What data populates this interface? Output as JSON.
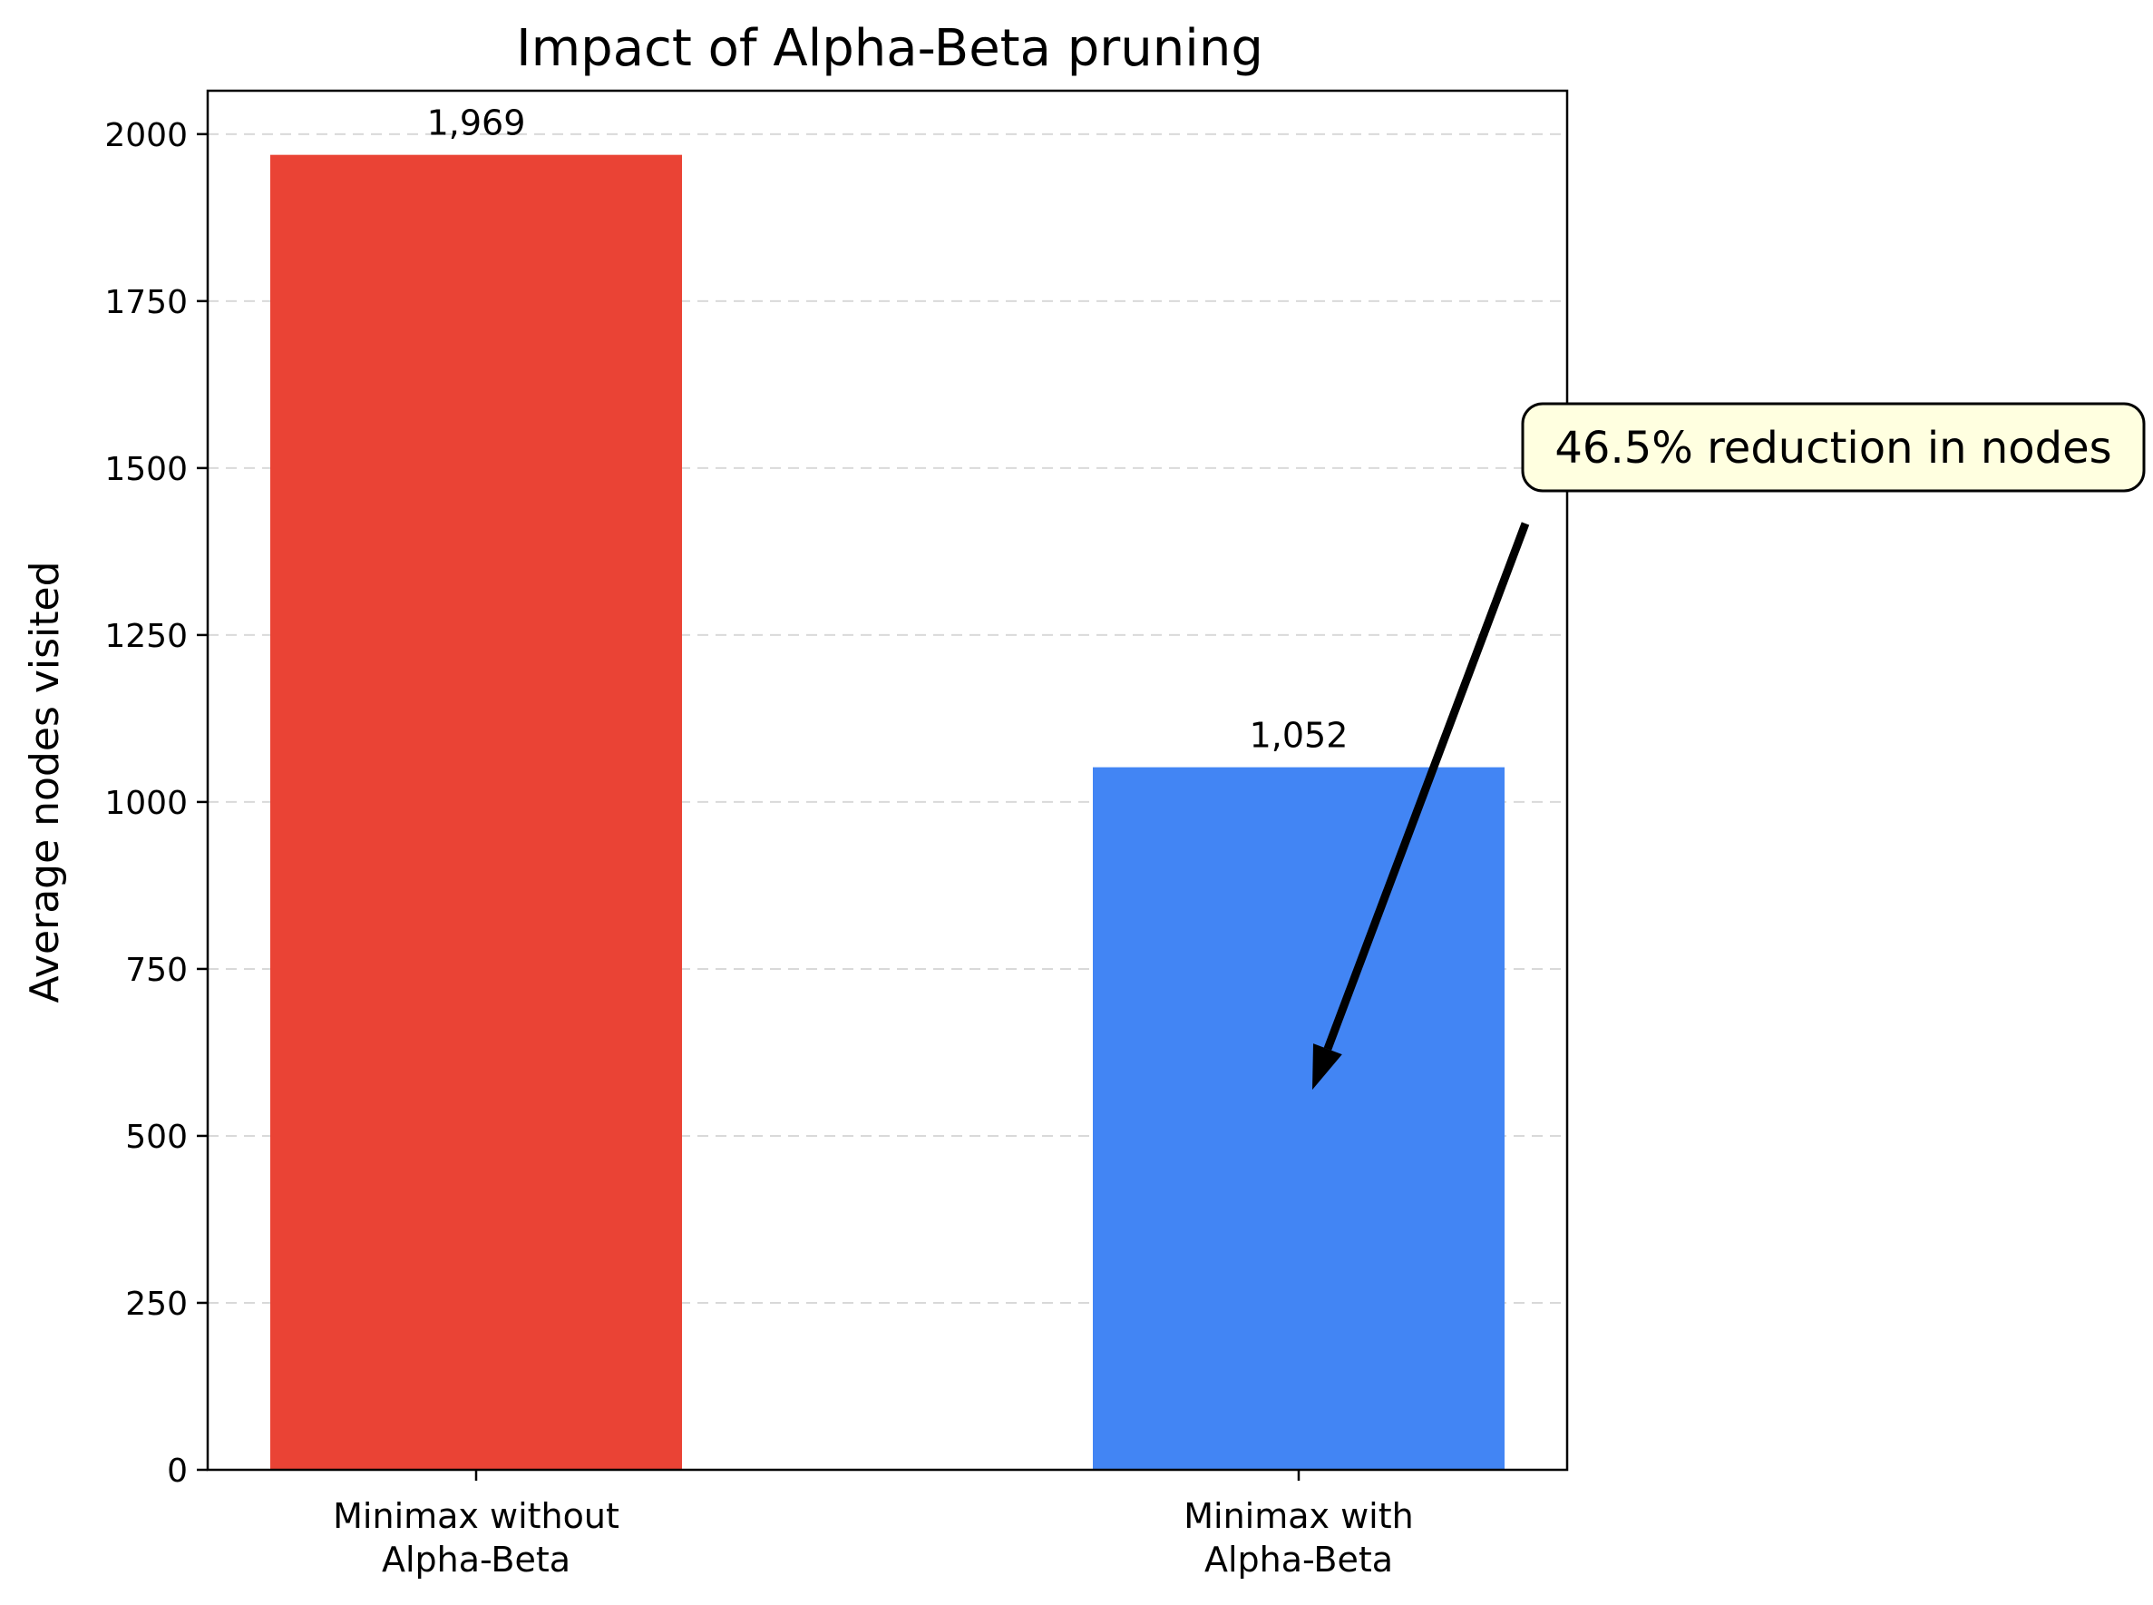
{
  "chart_data": {
    "type": "bar",
    "title": "Impact of Alpha-Beta pruning",
    "xlabel": "",
    "ylabel": "Average nodes visited",
    "categories": [
      "Minimax without\nAlpha-Beta",
      "Minimax with\nAlpha-Beta"
    ],
    "values": [
      1969,
      1052
    ],
    "value_labels": [
      "1,969",
      "1,052"
    ],
    "colors": [
      "#ea4335",
      "#4285f4"
    ],
    "ylim": [
      0,
      2065
    ],
    "yticks": [
      0,
      250,
      500,
      750,
      1000,
      1250,
      1500,
      1750,
      2000
    ],
    "grid": "y-dashed",
    "annotation": {
      "text": "46.5% reduction in nodes",
      "points_to": {
        "category_index": 1,
        "value": 580
      },
      "box_fill": "#ffffe0"
    }
  }
}
